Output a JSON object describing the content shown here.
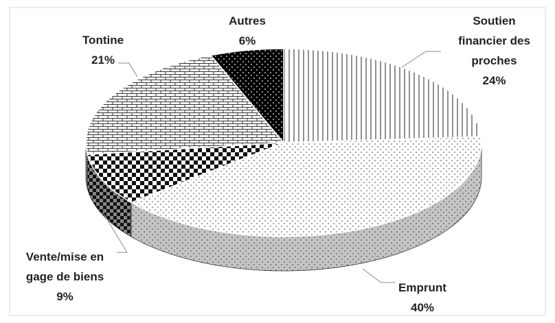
{
  "chart_data": {
    "type": "pie3d",
    "categories": [
      "Soutien financier des proches",
      "Emprunt",
      "Vente/mise en gage de biens",
      "Tontine",
      "Autres"
    ],
    "values": [
      24,
      40,
      9,
      21,
      6
    ],
    "value_labels": [
      "24%",
      "40%",
      "9%",
      "21%",
      "6%"
    ]
  }
}
